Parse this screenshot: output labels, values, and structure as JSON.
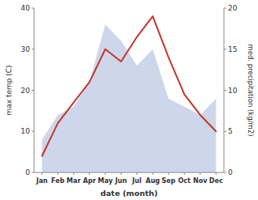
{
  "chart_data": {
    "type": "line",
    "categories": [
      "Jan",
      "Feb",
      "Mar",
      "Apr",
      "May",
      "Jun",
      "Jul",
      "Aug",
      "Sep",
      "Oct",
      "Nov",
      "Dec"
    ],
    "xlabel": "date (month)",
    "ylabel": "max temp (C)",
    "y2label": "med. precipitation (kg/m2)",
    "ylim": [
      0,
      40
    ],
    "yticks": [
      0,
      10,
      20,
      30,
      40
    ],
    "y2lim": [
      0,
      20
    ],
    "y2ticks": [
      0,
      5,
      10,
      15,
      20
    ],
    "grid": false,
    "series": [
      {
        "type": "area",
        "axis": "y2",
        "color": "#c5cfe8",
        "values": [
          4,
          7,
          8,
          11,
          18,
          16,
          13,
          15,
          9,
          8,
          7,
          9
        ]
      },
      {
        "type": "line",
        "color": "#c0392b",
        "values": [
          4,
          12,
          17,
          22,
          30,
          27,
          33,
          38,
          28,
          19,
          14,
          10
        ]
      }
    ]
  }
}
